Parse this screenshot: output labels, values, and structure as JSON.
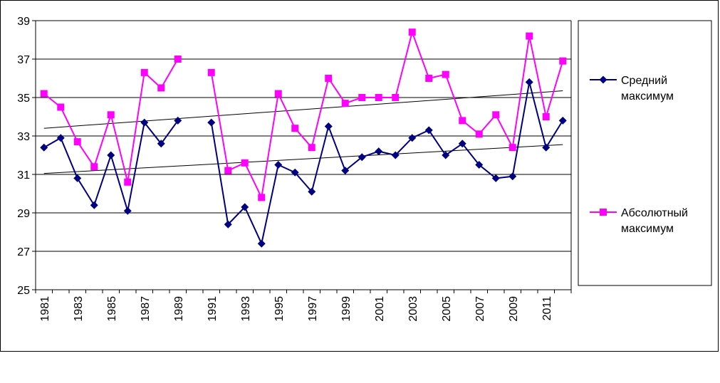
{
  "chart_data": {
    "type": "line",
    "title": "",
    "xlabel": "",
    "ylabel": "",
    "ylim": [
      25,
      39
    ],
    "yticks": [
      "25",
      "27",
      "29",
      "31",
      "33",
      "35",
      "37",
      "39"
    ],
    "grid": true,
    "legend_position": "right",
    "x": [
      1981,
      1982,
      1983,
      1984,
      1985,
      1986,
      1987,
      1988,
      1989,
      1990,
      1991,
      1992,
      1993,
      1994,
      1995,
      1996,
      1997,
      1998,
      1999,
      2000,
      2001,
      2002,
      2003,
      2004,
      2005,
      2006,
      2007,
      2008,
      2009,
      2010,
      2011,
      2012
    ],
    "xtick_labels": [
      "1981",
      "1983",
      "1985",
      "1987",
      "1989",
      "1991",
      "1993",
      "1995",
      "1997",
      "1999",
      "2001",
      "2003",
      "2005",
      "2007",
      "2009",
      "2011"
    ],
    "series": [
      {
        "name": "Средний максимум",
        "legend_lines": [
          "Средний",
          "максимум"
        ],
        "color": "#000080",
        "marker": "diamond",
        "values": [
          32.4,
          32.9,
          30.8,
          29.4,
          32.0,
          29.1,
          33.7,
          32.6,
          33.8,
          null,
          33.7,
          28.4,
          29.3,
          27.4,
          31.5,
          31.1,
          30.1,
          33.5,
          31.2,
          31.9,
          32.2,
          32.0,
          32.9,
          33.3,
          32.0,
          32.6,
          31.5,
          30.8,
          30.9,
          35.8,
          32.4,
          33.8
        ],
        "trend": [
          31.05,
          32.55
        ]
      },
      {
        "name": "Абсолютный максимум",
        "legend_lines": [
          "Абсолютный",
          "максимум"
        ],
        "color": "#ff00ff",
        "marker": "square",
        "values": [
          35.2,
          34.5,
          32.7,
          31.4,
          34.1,
          30.6,
          36.3,
          35.5,
          37.0,
          null,
          36.3,
          31.2,
          31.6,
          29.8,
          35.2,
          33.4,
          32.4,
          36.0,
          34.7,
          35.0,
          35.0,
          35.0,
          38.4,
          36.0,
          36.2,
          33.8,
          33.1,
          34.1,
          32.4,
          38.2,
          34.0,
          36.9
        ],
        "trend": [
          33.4,
          35.35
        ]
      }
    ]
  }
}
